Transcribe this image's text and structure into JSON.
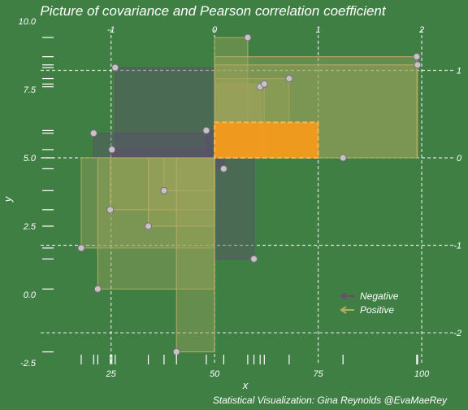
{
  "chart_data": {
    "type": "scatter",
    "title": "Picture of covariance and Pearson correlation coefficient",
    "xlabel": "x",
    "ylabel": "y",
    "caption": "Statistical Visualization: Gina Reynolds @EvaMaeRey",
    "xlim": [
      8,
      110
    ],
    "ylim": [
      -2.5,
      10.0
    ],
    "x_ticks": [
      25,
      50,
      75,
      100
    ],
    "y_ticks": [
      -2.5,
      0.0,
      2.5,
      5.0,
      7.5,
      10.0
    ],
    "y_tick_labels": [
      "-2.5",
      "0.0",
      "2.5",
      "5.0",
      "7.5",
      "10.0"
    ],
    "mean": {
      "x": 50,
      "y": 5.0
    },
    "sd": {
      "x": 25,
      "y": 3.2
    },
    "z_ticks_top": [
      -1,
      0,
      1,
      2
    ],
    "z_ticks_right": [
      1,
      0,
      -1,
      -2
    ],
    "correlation_box": {
      "x": [
        50,
        75
      ],
      "y": [
        5.0,
        6.3
      ]
    },
    "legend": {
      "items": [
        "Negative",
        "Positive"
      ],
      "position": "bottom-right"
    },
    "colors": {
      "background": "#3f7f44",
      "negative": "#6a4b72",
      "negative_fill": "#5a4f6b",
      "positive": "#b6ad62",
      "positive_fill": "#9aa35a",
      "highlight": "#f39a1c",
      "point": "#c8c3c0",
      "white": "#ffffff"
    },
    "points": [
      {
        "x": 17.8,
        "y": 1.7
      },
      {
        "x": 20.8,
        "y": 5.9
      },
      {
        "x": 21.8,
        "y": 0.2
      },
      {
        "x": 24.8,
        "y": 3.1
      },
      {
        "x": 25.2,
        "y": 5.3
      },
      {
        "x": 26.0,
        "y": 8.3
      },
      {
        "x": 34.0,
        "y": 2.5
      },
      {
        "x": 37.8,
        "y": 3.8
      },
      {
        "x": 40.8,
        "y": -2.1
      },
      {
        "x": 48.0,
        "y": 6.0
      },
      {
        "x": 52.2,
        "y": 4.6
      },
      {
        "x": 59.5,
        "y": 1.3
      },
      {
        "x": 58.0,
        "y": 9.4
      },
      {
        "x": 61.0,
        "y": 7.6
      },
      {
        "x": 62.0,
        "y": 7.7
      },
      {
        "x": 68.0,
        "y": 7.9
      },
      {
        "x": 81.0,
        "y": 5.0
      },
      {
        "x": 98.8,
        "y": 8.7
      },
      {
        "x": 99.0,
        "y": 8.4
      }
    ]
  }
}
